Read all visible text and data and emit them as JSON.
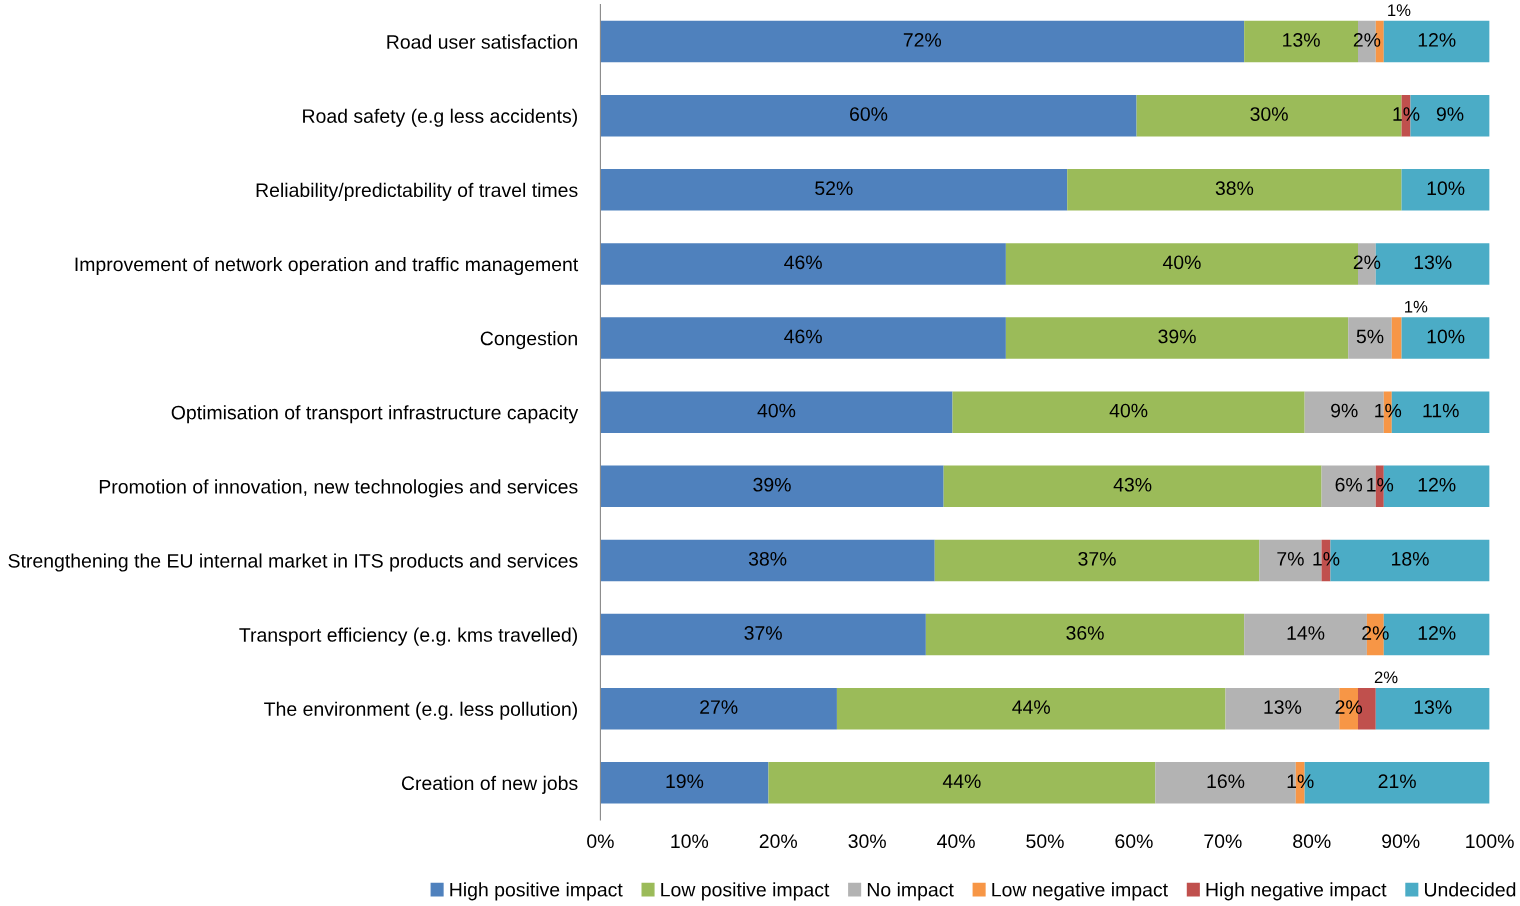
{
  "chart_data": {
    "type": "bar",
    "orientation": "horizontal",
    "stacked": true,
    "categories": [
      "Road user satisfaction",
      "Road safety (e.g less accidents)",
      "Reliability/predictability of travel times",
      "Improvement of network operation and traffic management",
      "Congestion",
      "Optimisation of transport infrastructure capacity",
      "Promotion of innovation, new technologies and services",
      "Strengthening the EU internal market in ITS products and services",
      "Transport efficiency (e.g. kms travelled)",
      "The environment (e.g. less pollution)",
      "Creation of new jobs"
    ],
    "series": [
      {
        "name": "High positive impact",
        "color": "#4f81bd",
        "values": [
          72.4,
          60.3,
          52.5,
          45.6,
          45.6,
          39.6,
          38.6,
          37.6,
          36.6,
          26.6,
          18.9
        ],
        "value_labels": [
          "72%",
          "60%",
          "52%",
          "46%",
          "46%",
          "40%",
          "39%",
          "38%",
          "37%",
          "27%",
          "19%"
        ]
      },
      {
        "name": "Low positive impact",
        "color": "#9bbb59",
        "values": [
          12.8,
          29.8,
          37.6,
          39.6,
          38.5,
          39.6,
          42.5,
          36.5,
          35.8,
          43.7,
          43.5
        ],
        "value_labels": [
          "13%",
          "30%",
          "38%",
          "40%",
          "39%",
          "40%",
          "43%",
          "37%",
          "36%",
          "44%",
          "44%"
        ]
      },
      {
        "name": "No impact",
        "color": "#b3b3b3",
        "values": [
          2.0,
          null,
          null,
          2.0,
          4.9,
          8.9,
          6.1,
          7.0,
          13.8,
          12.8,
          15.8
        ],
        "value_labels": [
          "2%",
          null,
          null,
          "2%",
          "5%",
          "9%",
          "6%",
          "7%",
          "14%",
          "13%",
          "16%"
        ]
      },
      {
        "name": "Low negative impact",
        "color": "#f79646",
        "values": [
          0.9,
          null,
          null,
          null,
          1.1,
          0.9,
          null,
          null,
          1.9,
          2.1,
          1.0
        ],
        "value_labels": [
          "1%",
          null,
          null,
          null,
          "1%",
          "1%",
          null,
          null,
          "2%",
          "2%",
          "1%"
        ]
      },
      {
        "name": "High negative impact",
        "color": "#c0504d",
        "values": [
          null,
          1.0,
          null,
          null,
          null,
          null,
          0.9,
          1.0,
          null,
          2.0,
          null
        ],
        "value_labels": [
          null,
          "1%",
          null,
          null,
          null,
          null,
          "1%",
          "1%",
          null,
          "2%",
          null
        ]
      },
      {
        "name": "Undecided",
        "color": "#4bacc6",
        "values": [
          11.9,
          8.9,
          9.9,
          12.8,
          9.9,
          11.0,
          11.9,
          17.9,
          11.9,
          12.8,
          20.8
        ],
        "value_labels": [
          "12%",
          "9%",
          "10%",
          "13%",
          "10%",
          "11%",
          "12%",
          "18%",
          "12%",
          "13%",
          "21%"
        ]
      }
    ],
    "xlim": [
      0,
      100
    ],
    "xticks": [
      {
        "value": 0,
        "label": "0%"
      },
      {
        "value": 10,
        "label": "10%"
      },
      {
        "value": 20,
        "label": "20%"
      },
      {
        "value": 30,
        "label": "30%"
      },
      {
        "value": 40,
        "label": "40%"
      },
      {
        "value": 50,
        "label": "50%"
      },
      {
        "value": 60,
        "label": "60%"
      },
      {
        "value": 70,
        "label": "70%"
      },
      {
        "value": 80,
        "label": "80%"
      },
      {
        "value": 90,
        "label": "90%"
      },
      {
        "value": 100,
        "label": "100%"
      }
    ],
    "grid": false,
    "legend": "bottom"
  }
}
